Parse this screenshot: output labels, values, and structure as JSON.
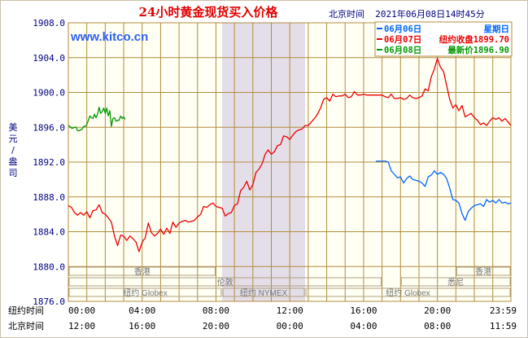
{
  "chart_data": {
    "type": "line",
    "title": "24小时黄金现货买入价格",
    "subtitle": "北京时间  2021年06月08日14时45分",
    "watermark": "www.kitco.cn",
    "ylabel": "美元/盎司",
    "ylim": [
      1876.0,
      1908.0
    ],
    "y_ticks": [
      "1908.0",
      "1904.0",
      "1900.0",
      "1896.0",
      "1892.0",
      "1888.0",
      "1884.0",
      "1880.0",
      "1876.0"
    ],
    "xlim": [
      0,
      1439
    ],
    "row1_label": "纽约时间",
    "row1_ticks": [
      "00:00",
      "04:00",
      "08:00",
      "12:00",
      "16:00",
      "20:00",
      "23:59"
    ],
    "row2_label": "北京时间",
    "row2_ticks": [
      "12:00",
      "16:00",
      "20:00",
      "00:00",
      "04:00",
      "08:00",
      "11:59"
    ],
    "legend": [
      {
        "label": "06月06日",
        "info": "星期日",
        "color": "#0066ff"
      },
      {
        "label": "06月07日",
        "info": "纽约收盘1899.70",
        "color": "#ee0000"
      },
      {
        "label": "06月08日",
        "info": "最新价1896.90",
        "color": "#009900"
      }
    ],
    "sessions": [
      {
        "label": "香港",
        "start": 0,
        "end": 480
      },
      {
        "label": "香港",
        "start": 1260,
        "end": 1439
      },
      {
        "label": "伦敦",
        "start": 0,
        "end": 1020
      },
      {
        "label": "悉尼",
        "start": 1080,
        "end": 1439
      },
      {
        "label": "纽约 Globex",
        "start": 0,
        "end": 500
      },
      {
        "label": "纽约 NYMEX",
        "start": 500,
        "end": 770
      },
      {
        "label": "纽约 Globex",
        "start": 770,
        "end": 1439
      }
    ],
    "shaded_range": [
      500,
      770
    ],
    "series": [
      {
        "name": "06月07日",
        "color": "#ee0000",
        "points": [
          [
            0,
            1887.0
          ],
          [
            10,
            1886.8
          ],
          [
            20,
            1886.2
          ],
          [
            30,
            1885.9
          ],
          [
            40,
            1886.2
          ],
          [
            50,
            1885.9
          ],
          [
            60,
            1886.3
          ],
          [
            70,
            1885.6
          ],
          [
            80,
            1886.4
          ],
          [
            90,
            1886.5
          ],
          [
            100,
            1887.1
          ],
          [
            110,
            1886.2
          ],
          [
            120,
            1886.0
          ],
          [
            130,
            1885.6
          ],
          [
            140,
            1885.1
          ],
          [
            150,
            1883.5
          ],
          [
            160,
            1882.4
          ],
          [
            170,
            1883.6
          ],
          [
            180,
            1883.5
          ],
          [
            190,
            1883.0
          ],
          [
            200,
            1883.5
          ],
          [
            210,
            1883.2
          ],
          [
            220,
            1882.8
          ],
          [
            230,
            1881.7
          ],
          [
            240,
            1882.8
          ],
          [
            250,
            1883.3
          ],
          [
            260,
            1885.0
          ],
          [
            270,
            1883.9
          ],
          [
            280,
            1883.5
          ],
          [
            290,
            1883.8
          ],
          [
            300,
            1884.3
          ],
          [
            310,
            1883.7
          ],
          [
            320,
            1884.4
          ],
          [
            330,
            1883.8
          ],
          [
            340,
            1885.1
          ],
          [
            350,
            1884.5
          ],
          [
            360,
            1885.0
          ],
          [
            370,
            1885.2
          ],
          [
            380,
            1885.3
          ],
          [
            390,
            1885.1
          ],
          [
            400,
            1885.2
          ],
          [
            410,
            1885.3
          ],
          [
            420,
            1885.7
          ],
          [
            430,
            1886.0
          ],
          [
            440,
            1886.9
          ],
          [
            450,
            1886.8
          ],
          [
            460,
            1887.1
          ],
          [
            470,
            1887.3
          ],
          [
            480,
            1886.9
          ],
          [
            490,
            1886.8
          ],
          [
            500,
            1886.7
          ],
          [
            510,
            1885.8
          ],
          [
            520,
            1886.1
          ],
          [
            530,
            1886.2
          ],
          [
            540,
            1887.0
          ],
          [
            550,
            1887.2
          ],
          [
            560,
            1888.7
          ],
          [
            570,
            1889.1
          ],
          [
            580,
            1889.8
          ],
          [
            590,
            1888.8
          ],
          [
            600,
            1889.4
          ],
          [
            610,
            1890.8
          ],
          [
            620,
            1891.2
          ],
          [
            630,
            1891.8
          ],
          [
            640,
            1892.9
          ],
          [
            650,
            1893.4
          ],
          [
            660,
            1892.9
          ],
          [
            670,
            1893.2
          ],
          [
            680,
            1893.9
          ],
          [
            690,
            1894.0
          ],
          [
            700,
            1895.0
          ],
          [
            710,
            1894.9
          ],
          [
            720,
            1894.6
          ],
          [
            730,
            1895.1
          ],
          [
            740,
            1895.5
          ],
          [
            750,
            1895.7
          ],
          [
            760,
            1895.8
          ],
          [
            770,
            1896.2
          ],
          [
            780,
            1896.2
          ],
          [
            790,
            1896.6
          ],
          [
            800,
            1897.0
          ],
          [
            810,
            1897.5
          ],
          [
            820,
            1898.2
          ],
          [
            830,
            1899.2
          ],
          [
            840,
            1899.4
          ],
          [
            850,
            1899.0
          ],
          [
            860,
            1899.8
          ],
          [
            870,
            1899.5
          ],
          [
            880,
            1899.6
          ],
          [
            890,
            1899.6
          ],
          [
            900,
            1899.8
          ],
          [
            910,
            1899.4
          ],
          [
            920,
            1899.5
          ],
          [
            930,
            1900.1
          ],
          [
            940,
            1899.7
          ],
          [
            950,
            1899.7
          ],
          [
            960,
            1899.8
          ],
          [
            970,
            1899.7
          ],
          [
            980,
            1899.7
          ],
          [
            990,
            1899.7
          ],
          [
            1000,
            1899.7
          ],
          [
            1010,
            1899.7
          ],
          [
            1020,
            1899.7
          ],
          [
            1030,
            1899.5
          ],
          [
            1040,
            1899.4
          ],
          [
            1050,
            1899.8
          ],
          [
            1060,
            1899.3
          ],
          [
            1070,
            1899.3
          ],
          [
            1080,
            1899.4
          ],
          [
            1090,
            1899.2
          ],
          [
            1100,
            1899.3
          ],
          [
            1110,
            1899.7
          ],
          [
            1120,
            1899.4
          ],
          [
            1130,
            1899.3
          ],
          [
            1140,
            1899.4
          ],
          [
            1150,
            1899.6
          ],
          [
            1160,
            1900.4
          ],
          [
            1170,
            1900.2
          ],
          [
            1180,
            1901.8
          ],
          [
            1190,
            1902.7
          ],
          [
            1200,
            1903.9
          ],
          [
            1210,
            1902.9
          ],
          [
            1220,
            1902.4
          ],
          [
            1230,
            1900.8
          ],
          [
            1240,
            1899.2
          ],
          [
            1250,
            1898.2
          ],
          [
            1260,
            1898.6
          ],
          [
            1270,
            1897.9
          ],
          [
            1280,
            1898.5
          ],
          [
            1290,
            1897.2
          ],
          [
            1300,
            1897.4
          ],
          [
            1310,
            1897.6
          ],
          [
            1320,
            1897.1
          ],
          [
            1330,
            1896.8
          ],
          [
            1340,
            1896.3
          ],
          [
            1350,
            1896.5
          ],
          [
            1360,
            1896.2
          ],
          [
            1370,
            1896.7
          ],
          [
            1380,
            1897.1
          ],
          [
            1390,
            1896.9
          ],
          [
            1400,
            1897.1
          ],
          [
            1410,
            1896.7
          ],
          [
            1420,
            1897.0
          ],
          [
            1430,
            1896.6
          ],
          [
            1439,
            1896.2
          ]
        ]
      },
      {
        "name": "06月06日",
        "color": "#0066ff",
        "points": [
          [
            1000,
            1892.1
          ],
          [
            1010,
            1892.1
          ],
          [
            1020,
            1892.1
          ],
          [
            1030,
            1892.1
          ],
          [
            1040,
            1892.0
          ],
          [
            1050,
            1891.0
          ],
          [
            1060,
            1890.6
          ],
          [
            1070,
            1890.2
          ],
          [
            1080,
            1890.3
          ],
          [
            1090,
            1889.6
          ],
          [
            1100,
            1890.1
          ],
          [
            1110,
            1890.4
          ],
          [
            1120,
            1890.0
          ],
          [
            1130,
            1889.9
          ],
          [
            1140,
            1889.8
          ],
          [
            1150,
            1889.6
          ],
          [
            1160,
            1889.2
          ],
          [
            1170,
            1890.3
          ],
          [
            1180,
            1890.5
          ],
          [
            1190,
            1891.0
          ],
          [
            1200,
            1890.6
          ],
          [
            1210,
            1890.8
          ],
          [
            1220,
            1890.6
          ],
          [
            1230,
            1890.1
          ],
          [
            1240,
            1889.0
          ],
          [
            1250,
            1887.7
          ],
          [
            1260,
            1887.6
          ],
          [
            1270,
            1887.3
          ],
          [
            1280,
            1886.1
          ],
          [
            1290,
            1885.3
          ],
          [
            1300,
            1886.3
          ],
          [
            1310,
            1886.7
          ],
          [
            1320,
            1887.0
          ],
          [
            1330,
            1887.1
          ],
          [
            1340,
            1887.2
          ],
          [
            1350,
            1886.9
          ],
          [
            1360,
            1887.7
          ],
          [
            1370,
            1887.4
          ],
          [
            1380,
            1887.6
          ],
          [
            1390,
            1887.3
          ],
          [
            1400,
            1887.7
          ],
          [
            1410,
            1887.3
          ],
          [
            1420,
            1887.4
          ],
          [
            1430,
            1887.2
          ],
          [
            1439,
            1887.3
          ]
        ]
      },
      {
        "name": "06月08日",
        "color": "#009900",
        "points": [
          [
            0,
            1896.2
          ],
          [
            5,
            1896.1
          ],
          [
            10,
            1895.9
          ],
          [
            15,
            1895.9
          ],
          [
            20,
            1896.0
          ],
          [
            25,
            1896.0
          ],
          [
            30,
            1895.6
          ],
          [
            35,
            1895.6
          ],
          [
            40,
            1895.7
          ],
          [
            45,
            1895.8
          ],
          [
            50,
            1896.1
          ],
          [
            55,
            1896.1
          ],
          [
            60,
            1896.3
          ],
          [
            65,
            1896.8
          ],
          [
            70,
            1897.3
          ],
          [
            75,
            1897.1
          ],
          [
            80,
            1897.0
          ],
          [
            85,
            1897.5
          ],
          [
            90,
            1897.1
          ],
          [
            95,
            1897.5
          ],
          [
            100,
            1898.3
          ],
          [
            105,
            1897.6
          ],
          [
            110,
            1897.8
          ],
          [
            115,
            1898.2
          ],
          [
            120,
            1897.6
          ],
          [
            125,
            1898.2
          ],
          [
            130,
            1897.3
          ],
          [
            135,
            1897.9
          ],
          [
            140,
            1896.1
          ],
          [
            145,
            1897.0
          ],
          [
            150,
            1897.1
          ],
          [
            155,
            1896.7
          ],
          [
            160,
            1896.8
          ],
          [
            165,
            1896.8
          ],
          [
            170,
            1897.3
          ],
          [
            175,
            1897.0
          ],
          [
            180,
            1897.2
          ],
          [
            185,
            1896.9
          ]
        ]
      }
    ]
  }
}
